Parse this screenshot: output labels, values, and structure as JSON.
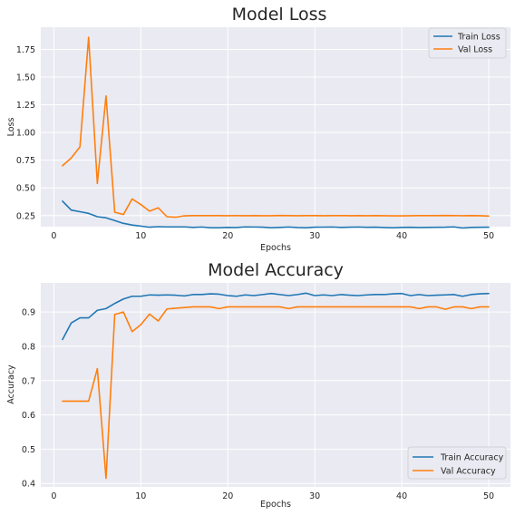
{
  "chart_data": [
    {
      "type": "line",
      "title": "Model Loss",
      "xlabel": "Epochs",
      "ylabel": "Loss",
      "xlim": [
        -1.5,
        52.5
      ],
      "ylim": [
        0.15,
        1.95
      ],
      "xticks": [
        0,
        10,
        20,
        30,
        40,
        50
      ],
      "yticks": [
        0.25,
        0.5,
        0.75,
        1.0,
        1.25,
        1.5,
        1.75
      ],
      "ytick_labels": [
        "0.25",
        "0.50",
        "0.75",
        "1.00",
        "1.25",
        "1.50",
        "1.75"
      ],
      "grid": true,
      "legend_position": "top-right",
      "x": [
        1,
        2,
        3,
        4,
        5,
        6,
        7,
        8,
        9,
        10,
        11,
        12,
        13,
        14,
        15,
        16,
        17,
        18,
        19,
        20,
        21,
        22,
        23,
        24,
        25,
        26,
        27,
        28,
        29,
        30,
        31,
        32,
        33,
        34,
        35,
        36,
        37,
        38,
        39,
        40,
        41,
        42,
        43,
        44,
        45,
        46,
        47,
        48,
        49,
        50
      ],
      "series": [
        {
          "name": "Train Loss",
          "color": "#1f77b4",
          "values": [
            0.38,
            0.3,
            0.285,
            0.27,
            0.24,
            0.23,
            0.205,
            0.18,
            0.165,
            0.155,
            0.145,
            0.15,
            0.148,
            0.148,
            0.148,
            0.143,
            0.147,
            0.14,
            0.14,
            0.143,
            0.142,
            0.148,
            0.147,
            0.145,
            0.14,
            0.143,
            0.147,
            0.142,
            0.14,
            0.145,
            0.146,
            0.147,
            0.143,
            0.145,
            0.147,
            0.144,
            0.145,
            0.142,
            0.14,
            0.143,
            0.144,
            0.142,
            0.143,
            0.144,
            0.145,
            0.148,
            0.138,
            0.143,
            0.144,
            0.145
          ]
        },
        {
          "name": "Val Loss",
          "color": "#ff7f0e",
          "values": [
            0.7,
            0.77,
            0.87,
            1.86,
            0.54,
            1.33,
            0.28,
            0.26,
            0.4,
            0.35,
            0.29,
            0.32,
            0.24,
            0.235,
            0.248,
            0.25,
            0.25,
            0.25,
            0.25,
            0.249,
            0.25,
            0.249,
            0.25,
            0.249,
            0.249,
            0.251,
            0.25,
            0.249,
            0.25,
            0.25,
            0.249,
            0.25,
            0.25,
            0.249,
            0.25,
            0.249,
            0.25,
            0.249,
            0.248,
            0.248,
            0.249,
            0.25,
            0.25,
            0.25,
            0.251,
            0.25,
            0.249,
            0.25,
            0.249,
            0.246
          ]
        }
      ]
    },
    {
      "type": "line",
      "title": "Model Accuracy",
      "xlabel": "Epochs",
      "ylabel": "Accuracy",
      "xlim": [
        -1.5,
        52.5
      ],
      "ylim": [
        0.39,
        0.985
      ],
      "xticks": [
        0,
        10,
        20,
        30,
        40,
        50
      ],
      "yticks": [
        0.4,
        0.5,
        0.6,
        0.7,
        0.8,
        0.9
      ],
      "ytick_labels": [
        "0.4",
        "0.5",
        "0.6",
        "0.7",
        "0.8",
        "0.9"
      ],
      "grid": true,
      "legend_position": "bottom-right",
      "x": [
        1,
        2,
        3,
        4,
        5,
        6,
        7,
        8,
        9,
        10,
        11,
        12,
        13,
        14,
        15,
        16,
        17,
        18,
        19,
        20,
        21,
        22,
        23,
        24,
        25,
        26,
        27,
        28,
        29,
        30,
        31,
        32,
        33,
        34,
        35,
        36,
        37,
        38,
        39,
        40,
        41,
        42,
        43,
        44,
        45,
        46,
        47,
        48,
        49,
        50
      ],
      "series": [
        {
          "name": "Train Accuracy",
          "color": "#1f77b4",
          "values": [
            0.82,
            0.868,
            0.883,
            0.883,
            0.905,
            0.91,
            0.925,
            0.938,
            0.946,
            0.946,
            0.95,
            0.949,
            0.95,
            0.949,
            0.947,
            0.951,
            0.951,
            0.953,
            0.952,
            0.948,
            0.946,
            0.95,
            0.948,
            0.951,
            0.954,
            0.951,
            0.948,
            0.951,
            0.955,
            0.948,
            0.95,
            0.948,
            0.951,
            0.949,
            0.948,
            0.95,
            0.951,
            0.951,
            0.953,
            0.954,
            0.948,
            0.951,
            0.948,
            0.949,
            0.95,
            0.951,
            0.946,
            0.951,
            0.953,
            0.954
          ]
        },
        {
          "name": "Val Accuracy",
          "color": "#ff7f0e",
          "values": [
            0.64,
            0.64,
            0.64,
            0.64,
            0.735,
            0.415,
            0.893,
            0.9,
            0.843,
            0.863,
            0.894,
            0.874,
            0.909,
            0.911,
            0.913,
            0.915,
            0.915,
            0.915,
            0.91,
            0.915,
            0.915,
            0.915,
            0.915,
            0.915,
            0.915,
            0.915,
            0.91,
            0.915,
            0.915,
            0.915,
            0.915,
            0.915,
            0.915,
            0.915,
            0.915,
            0.915,
            0.915,
            0.915,
            0.915,
            0.915,
            0.915,
            0.91,
            0.915,
            0.915,
            0.908,
            0.915,
            0.915,
            0.91,
            0.915,
            0.915
          ]
        }
      ]
    }
  ]
}
